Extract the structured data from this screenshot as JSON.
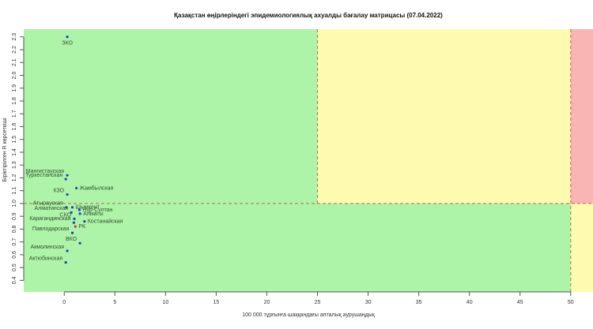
{
  "chart_data": {
    "type": "scatter",
    "title": "Қазақстан өңірлеріндегі эпидемиологиялық ахуалды бағалау матрицасы  (07.04.2022)",
    "x_label": "100 000 тұрғынға шаққандағы апталық аурушаңдық",
    "y_label": "Біріктірілген R көрсеткіші",
    "labels": [
      "ЗКО",
      "Мангистауская",
      "Туркестанская",
      "Жамбылская",
      "КЗО",
      "Атырауская",
      "Шымкент",
      "Нур-Султан",
      "Алматинская",
      "Алматы",
      "СКО",
      "Карагандинская",
      "Костанайская",
      "РК",
      "Павлодарская",
      "ВКО",
      "Акмолинская",
      "Актюбинская"
    ],
    "x": [
      0.3,
      0.3,
      0.15,
      1.2,
      0.3,
      0.2,
      0.8,
      1.5,
      0.7,
      1.55,
      1.0,
      0.95,
      2.0,
      1.1,
      0.8,
      1.55,
      0.3,
      0.15
    ],
    "values": [
      2.3,
      1.22,
      1.19,
      1.12,
      1.07,
      0.97,
      0.97,
      0.95,
      0.93,
      0.92,
      0.88,
      0.85,
      0.86,
      0.82,
      0.77,
      0.69,
      0.63,
      0.54
    ],
    "colors": [
      "#1f3fbf",
      "#1f3fbf",
      "#1f3fbf",
      "#1f3fbf",
      "#1f3fbf",
      "#1f3fbf",
      "#1f3fbf",
      "#1f3fbf",
      "#1f3fbf",
      "#1f3fbf",
      "#1f3fbf",
      "#1f3fbf",
      "#1f3fbf",
      "#e03020",
      "#1f3fbf",
      "#1f3fbf",
      "#1f3fbf",
      "#1f3fbf"
    ],
    "xlim": [
      -4,
      52.2
    ],
    "ylim": [
      0.31,
      2.36
    ],
    "xticks": [
      0,
      5,
      10,
      15,
      20,
      25,
      30,
      35,
      40,
      45,
      50
    ],
    "yticks": [
      0.4,
      0.5,
      0.6,
      0.7,
      0.8,
      0.9,
      {
        "value": 1,
        "label": "1.0"
      },
      1.1,
      1.2,
      1.3,
      1.4,
      1.5,
      1.6,
      1.7,
      1.8,
      1.9,
      {
        "value": 2,
        "label": "2.0"
      },
      2.1,
      2.2,
      2.3
    ],
    "zones": {
      "x_breaks": [
        25,
        50
      ],
      "y_break": 1,
      "green": "#aef4a8",
      "yellow": "#fefbb0",
      "red": "#f9b4b4",
      "line_color": "#b0704c"
    }
  }
}
